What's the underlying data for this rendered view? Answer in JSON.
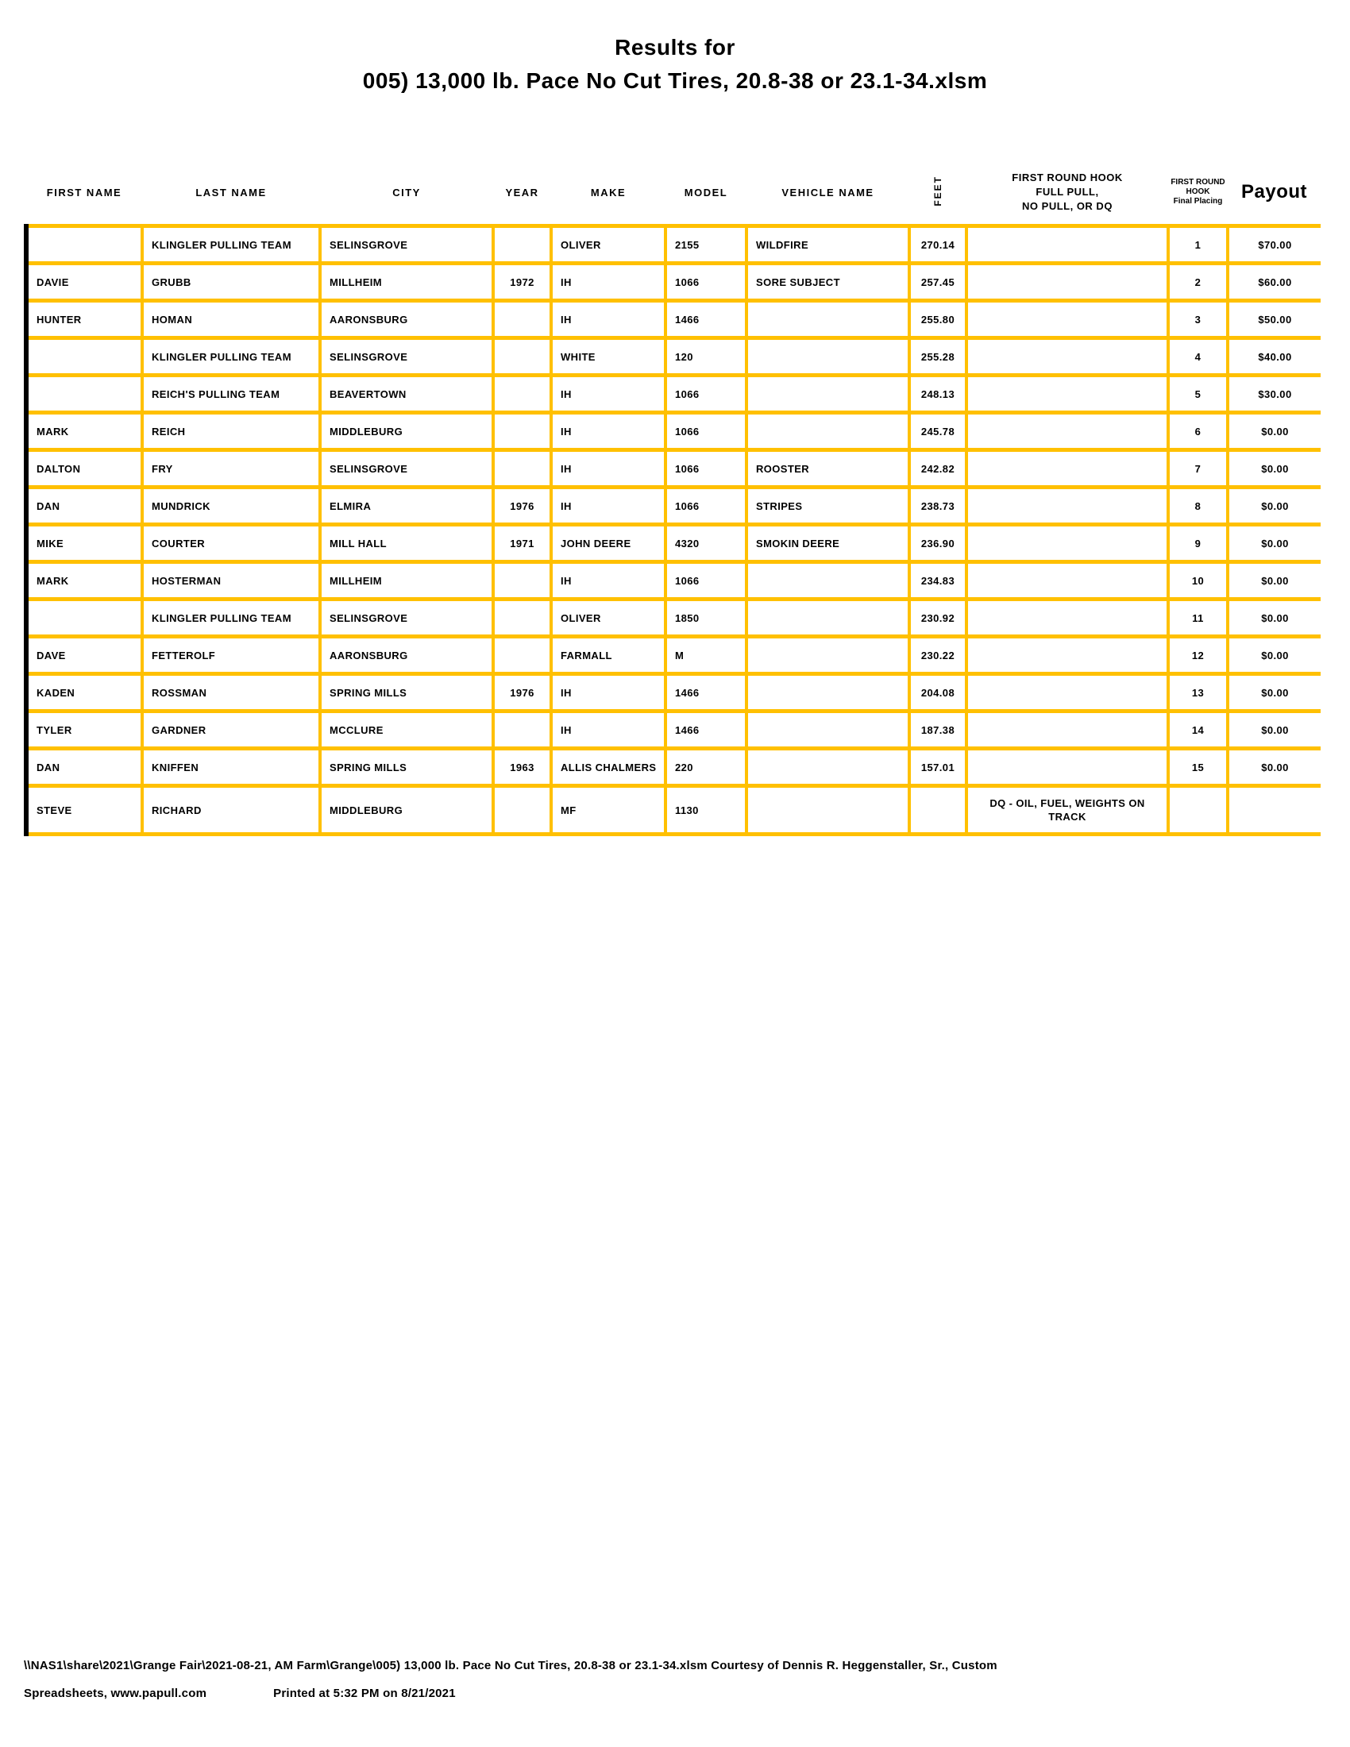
{
  "page": {
    "title_line1": "Results for",
    "title_line2": "005) 13,000 lb. Pace No Cut Tires, 20.8-38 or 23.1-34.xlsm"
  },
  "table": {
    "headers": {
      "first_name": "FIRST NAME",
      "last_name": "LAST NAME",
      "city": "CITY",
      "year": "YEAR",
      "make": "MAKE",
      "model": "MODEL",
      "vehicle_name": "VEHICLE NAME",
      "feet": "FEET",
      "hook_lines": [
        "FIRST ROUND HOOK",
        "FULL PULL,",
        "NO PULL, OR DQ"
      ],
      "placing_lines": [
        "FIRST ROUND",
        "HOOK",
        "Final Placing"
      ],
      "payout": "Payout"
    },
    "rows": [
      [
        "",
        "KLINGLER PULLING TEAM",
        "SELINSGROVE",
        "",
        "OLIVER",
        "2155",
        "WILDFIRE",
        "270.14",
        "",
        "1",
        "$70.00"
      ],
      [
        "DAVIE",
        "GRUBB",
        "MILLHEIM",
        "1972",
        "IH",
        "1066",
        "SORE SUBJECT",
        "257.45",
        "",
        "2",
        "$60.00"
      ],
      [
        "HUNTER",
        "HOMAN",
        "AARONSBURG",
        "",
        "IH",
        "1466",
        "",
        "255.80",
        "",
        "3",
        "$50.00"
      ],
      [
        "",
        "KLINGLER PULLING TEAM",
        "SELINSGROVE",
        "",
        "WHITE",
        "120",
        "",
        "255.28",
        "",
        "4",
        "$40.00"
      ],
      [
        "",
        "REICH'S PULLING TEAM",
        "BEAVERTOWN",
        "",
        "IH",
        "1066",
        "",
        "248.13",
        "",
        "5",
        "$30.00"
      ],
      [
        "MARK",
        "REICH",
        "MIDDLEBURG",
        "",
        "IH",
        "1066",
        "",
        "245.78",
        "",
        "6",
        "$0.00"
      ],
      [
        "DALTON",
        "FRY",
        "SELINSGROVE",
        "",
        "IH",
        "1066",
        "ROOSTER",
        "242.82",
        "",
        "7",
        "$0.00"
      ],
      [
        "DAN",
        "MUNDRICK",
        "ELMIRA",
        "1976",
        "IH",
        "1066",
        "STRIPES",
        "238.73",
        "",
        "8",
        "$0.00"
      ],
      [
        "MIKE",
        "COURTER",
        "MILL HALL",
        "1971",
        "JOHN DEERE",
        "4320",
        "SMOKIN DEERE",
        "236.90",
        "",
        "9",
        "$0.00"
      ],
      [
        "MARK",
        "HOSTERMAN",
        "MILLHEIM",
        "",
        "IH",
        "1066",
        "",
        "234.83",
        "",
        "10",
        "$0.00"
      ],
      [
        "",
        "KLINGLER PULLING TEAM",
        "SELINSGROVE",
        "",
        "OLIVER",
        "1850",
        "",
        "230.92",
        "",
        "11",
        "$0.00"
      ],
      [
        "DAVE",
        "FETTEROLF",
        "AARONSBURG",
        "",
        "FARMALL",
        "M",
        "",
        "230.22",
        "",
        "12",
        "$0.00"
      ],
      [
        "KADEN",
        "ROSSMAN",
        "SPRING MILLS",
        "1976",
        "IH",
        "1466",
        "",
        "204.08",
        "",
        "13",
        "$0.00"
      ],
      [
        "TYLER",
        "GARDNER",
        "MCCLURE",
        "",
        "IH",
        "1466",
        "",
        "187.38",
        "",
        "14",
        "$0.00"
      ],
      [
        "DAN",
        "KNIFFEN",
        "SPRING MILLS",
        "1963",
        "ALLIS CHALMERS",
        "220",
        "",
        "157.01",
        "",
        "15",
        "$0.00"
      ],
      [
        "STEVE",
        "RICHARD",
        "MIDDLEBURG",
        "",
        "MF",
        "1130",
        "",
        "",
        "DQ - OIL, FUEL, WEIGHTS ON TRACK",
        "",
        ""
      ]
    ]
  },
  "footer": {
    "line1": "\\\\NAS1\\share\\2021\\Grange Fair\\2021-08-21, AM Farm\\Grange\\005) 13,000 lb. Pace No Cut Tires, 20.8-38 or 23.1-34.xlsm  Courtesy of Dennis R. Heggenstaller, Sr., Custom",
    "line2_left": "Spreadsheets, www.papull.com",
    "line2_right": "Printed at 5:32 PM on 8/21/2021"
  },
  "colors": {
    "grid_gold": "#FFC000",
    "edge_black": "#000000",
    "text": "#000000",
    "background": "#FFFFFF"
  }
}
